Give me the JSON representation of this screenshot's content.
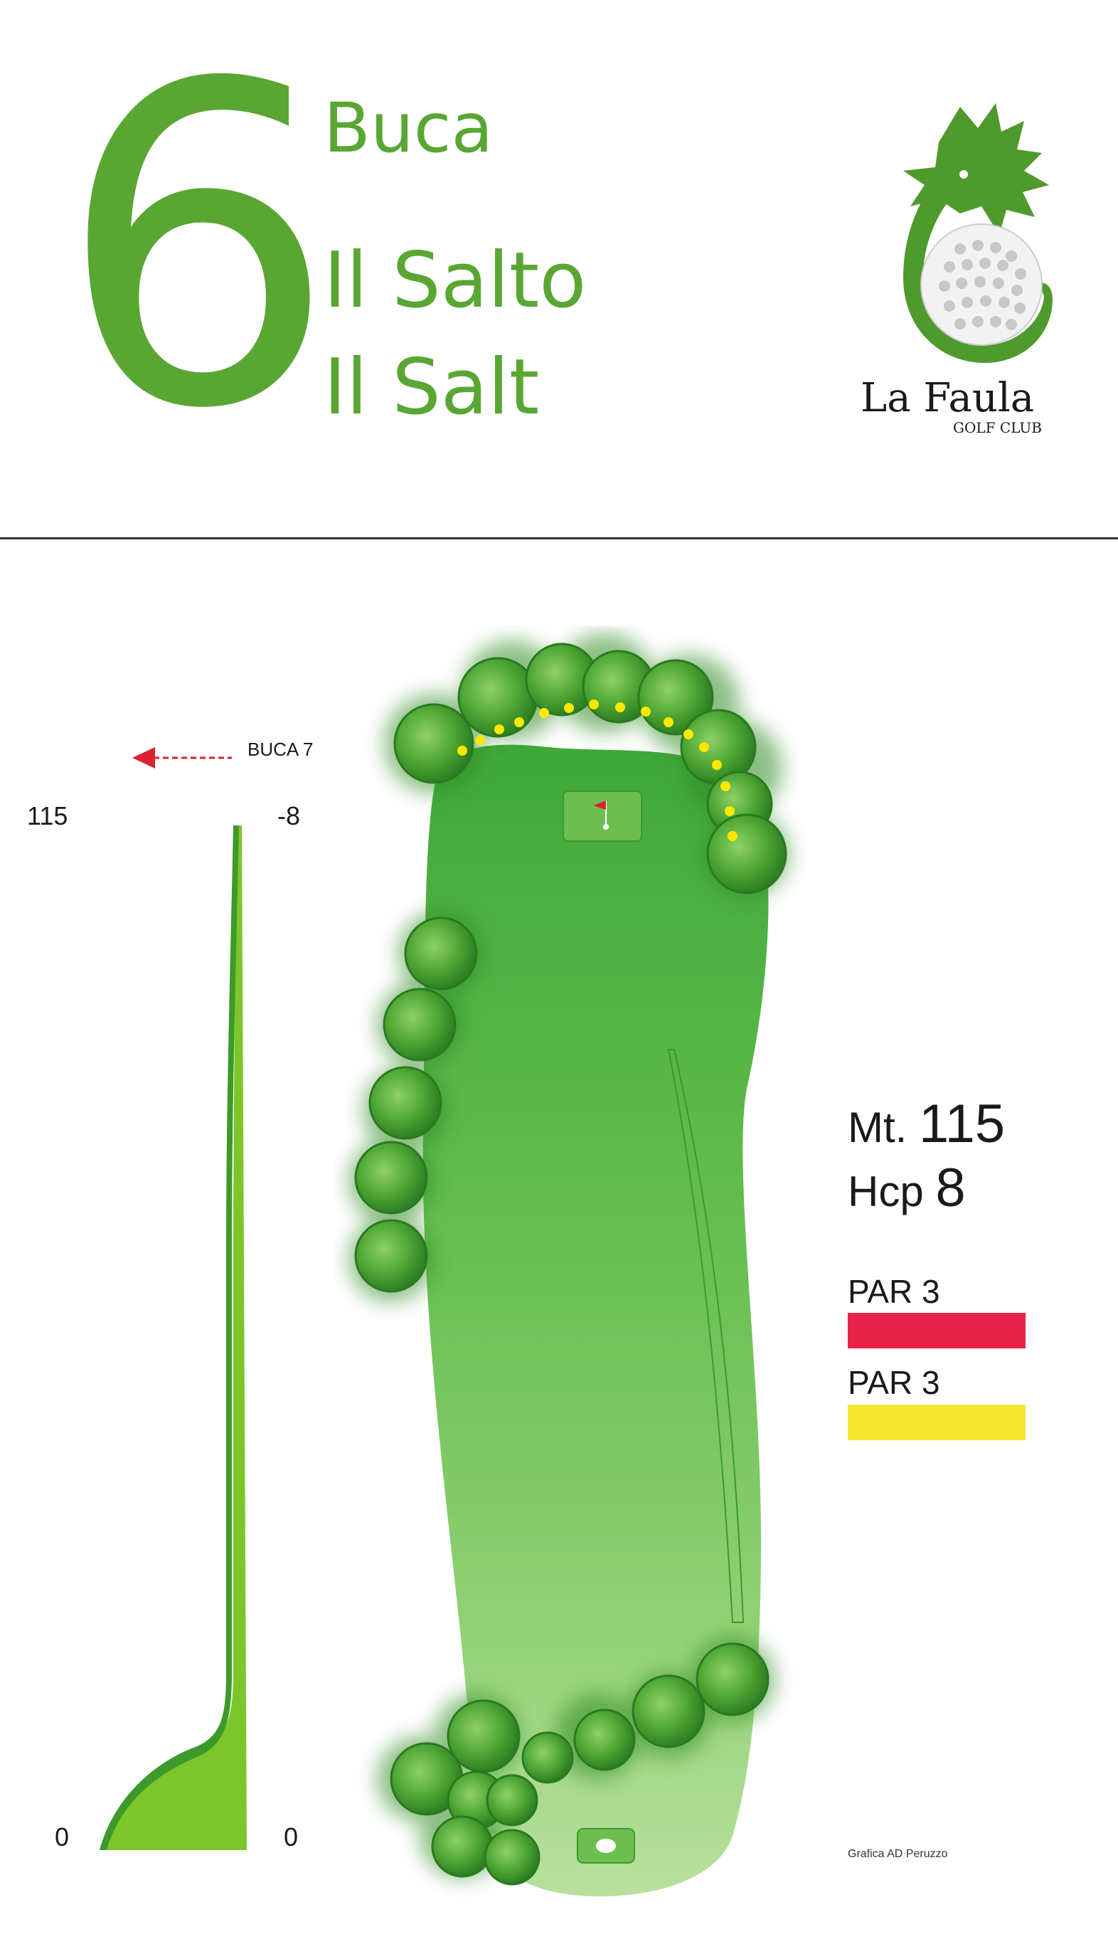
{
  "header": {
    "hole_number": "6",
    "buca_label": "Buca",
    "name_it": "Il Salto",
    "name_local": "Il Salt"
  },
  "logo": {
    "text": "La Faula",
    "subtext": "GOLF CLUB",
    "icon": "dragon-golf-ball-icon"
  },
  "profile": {
    "distance_top": "115",
    "elevation_top": "-8",
    "distance_bottom": "0",
    "elevation_bottom": "0",
    "next_hole_label": "BUCA 7"
  },
  "stats": {
    "distance_prefix": "Mt.",
    "distance_value": "115",
    "hcp_prefix": "Hcp",
    "hcp_value": "8"
  },
  "tees": [
    {
      "label": "PAR 3",
      "color": "#e8234a"
    },
    {
      "label": "PAR 3",
      "color": "#f5e630"
    }
  ],
  "colors": {
    "brand_green": "#5aa633",
    "fairway": "#4caf3f",
    "trees": "#3d9a2a",
    "arrow": "#d9232e",
    "path_dots": "#ffe800"
  },
  "credit": "Grafica AD Peruzzo"
}
